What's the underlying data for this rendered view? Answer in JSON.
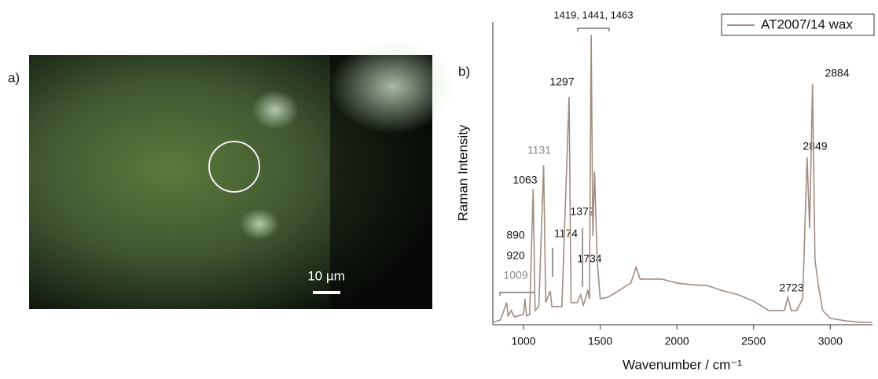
{
  "panel_labels": [
    "a)",
    "b)"
  ],
  "scale_bar": "10 µm",
  "chart_data": {
    "type": "line",
    "xlabel": "Wavenumber / cm⁻¹",
    "ylabel": "Raman Intensity",
    "xlim": [
      800,
      3270
    ],
    "xticks": [
      1000,
      1500,
      2000,
      2500,
      3000
    ],
    "ylim": [
      0,
      100
    ],
    "legend": "upper right",
    "x": [
      800,
      850,
      890,
      900,
      920,
      940,
      1000,
      1009,
      1020,
      1040,
      1063,
      1075,
      1100,
      1131,
      1145,
      1174,
      1185,
      1250,
      1297,
      1310,
      1350,
      1372,
      1390,
      1419,
      1430,
      1441,
      1452,
      1463,
      1480,
      1500,
      1550,
      1600,
      1650,
      1700,
      1734,
      1760,
      1800,
      1900,
      2000,
      2100,
      2200,
      2300,
      2400,
      2500,
      2600,
      2650,
      2700,
      2723,
      2745,
      2780,
      2820,
      2849,
      2865,
      2884,
      2900,
      2920,
      2950,
      3000,
      3100,
      3200,
      3270
    ],
    "series": [
      {
        "name": "AT2007/14 wax",
        "color": "#a08c84",
        "values": [
          0.8,
          1.6,
          7.3,
          2.9,
          4.7,
          2.6,
          3.4,
          8.6,
          2.9,
          3.4,
          44.9,
          4.7,
          6.0,
          52.7,
          7.3,
          11.2,
          6.0,
          6.0,
          75.3,
          7.3,
          7.3,
          9.9,
          6.5,
          11.2,
          8.6,
          95.8,
          29.4,
          50.6,
          21.6,
          8.6,
          9.1,
          10.6,
          12.2,
          13.8,
          19.0,
          15.1,
          15.1,
          15.1,
          13.8,
          13.2,
          12.9,
          11.2,
          9.9,
          7.8,
          4.7,
          4.7,
          4.7,
          9.1,
          4.7,
          4.7,
          8.6,
          55.3,
          31.9,
          79.5,
          21.6,
          13.8,
          4.7,
          2.1,
          1.3,
          0.8,
          0.8
        ]
      }
    ],
    "annotations": [
      "1419, 1441, 1463",
      "1297",
      "1131",
      "1063",
      "890",
      "920",
      "1009",
      "1174",
      "1372",
      "1734",
      "2723",
      "2849",
      "2884"
    ]
  }
}
